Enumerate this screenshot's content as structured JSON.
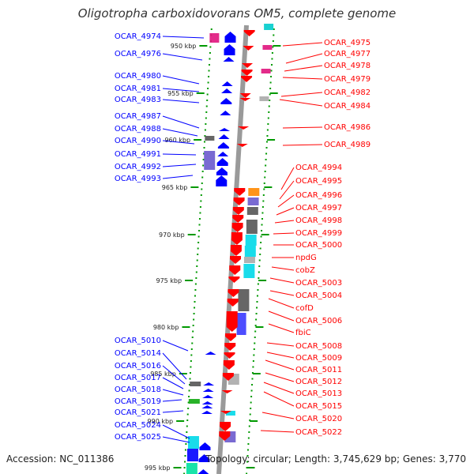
{
  "title": "Oligotropha carboxidovorans OM5, complete genome",
  "footer": {
    "accession": "Accession: NC_011386",
    "summary": "Topology: circular; Length: 3,745,629 bp; Genes: 3,770"
  },
  "colors": {
    "forward_strand": "#0000ff",
    "reverse_strand": "#ff0000",
    "backbone": "#999999",
    "tick_marks": "#009900"
  },
  "scale": {
    "unit": "kbp",
    "ticks": [
      "950 kbp",
      "955 kbp",
      "960 kbp",
      "965 kbp",
      "970 kbp",
      "975 kbp",
      "980 kbp",
      "985 kbp",
      "990 kbp",
      "995 kbp"
    ]
  },
  "forward_genes": [
    "OCAR_4974",
    "OCAR_4976",
    "OCAR_4980",
    "OCAR_4981",
    "OCAR_4983",
    "OCAR_4987",
    "OCAR_4988",
    "OCAR_4990",
    "OCAR_4991",
    "OCAR_4992",
    "OCAR_4993",
    "OCAR_5010",
    "OCAR_5014",
    "OCAR_5016",
    "OCAR_5017",
    "OCAR_5018",
    "OCAR_5019",
    "OCAR_5021",
    "OCAR_5024",
    "OCAR_5025"
  ],
  "reverse_genes": [
    "OCAR_4975",
    "OCAR_4977",
    "OCAR_4978",
    "OCAR_4979",
    "OCAR_4982",
    "OCAR_4984",
    "OCAR_4986",
    "OCAR_4989",
    "OCAR_4994",
    "OCAR_4995",
    "OCAR_4996",
    "OCAR_4997",
    "OCAR_4998",
    "OCAR_4999",
    "OCAR_5000",
    "npdG",
    "cobZ",
    "OCAR_5003",
    "OCAR_5004",
    "cofD",
    "OCAR_5006",
    "fbiC",
    "OCAR_5008",
    "OCAR_5009",
    "OCAR_5011",
    "OCAR_5012",
    "OCAR_5013",
    "OCAR_5015",
    "OCAR_5020",
    "OCAR_5022"
  ]
}
